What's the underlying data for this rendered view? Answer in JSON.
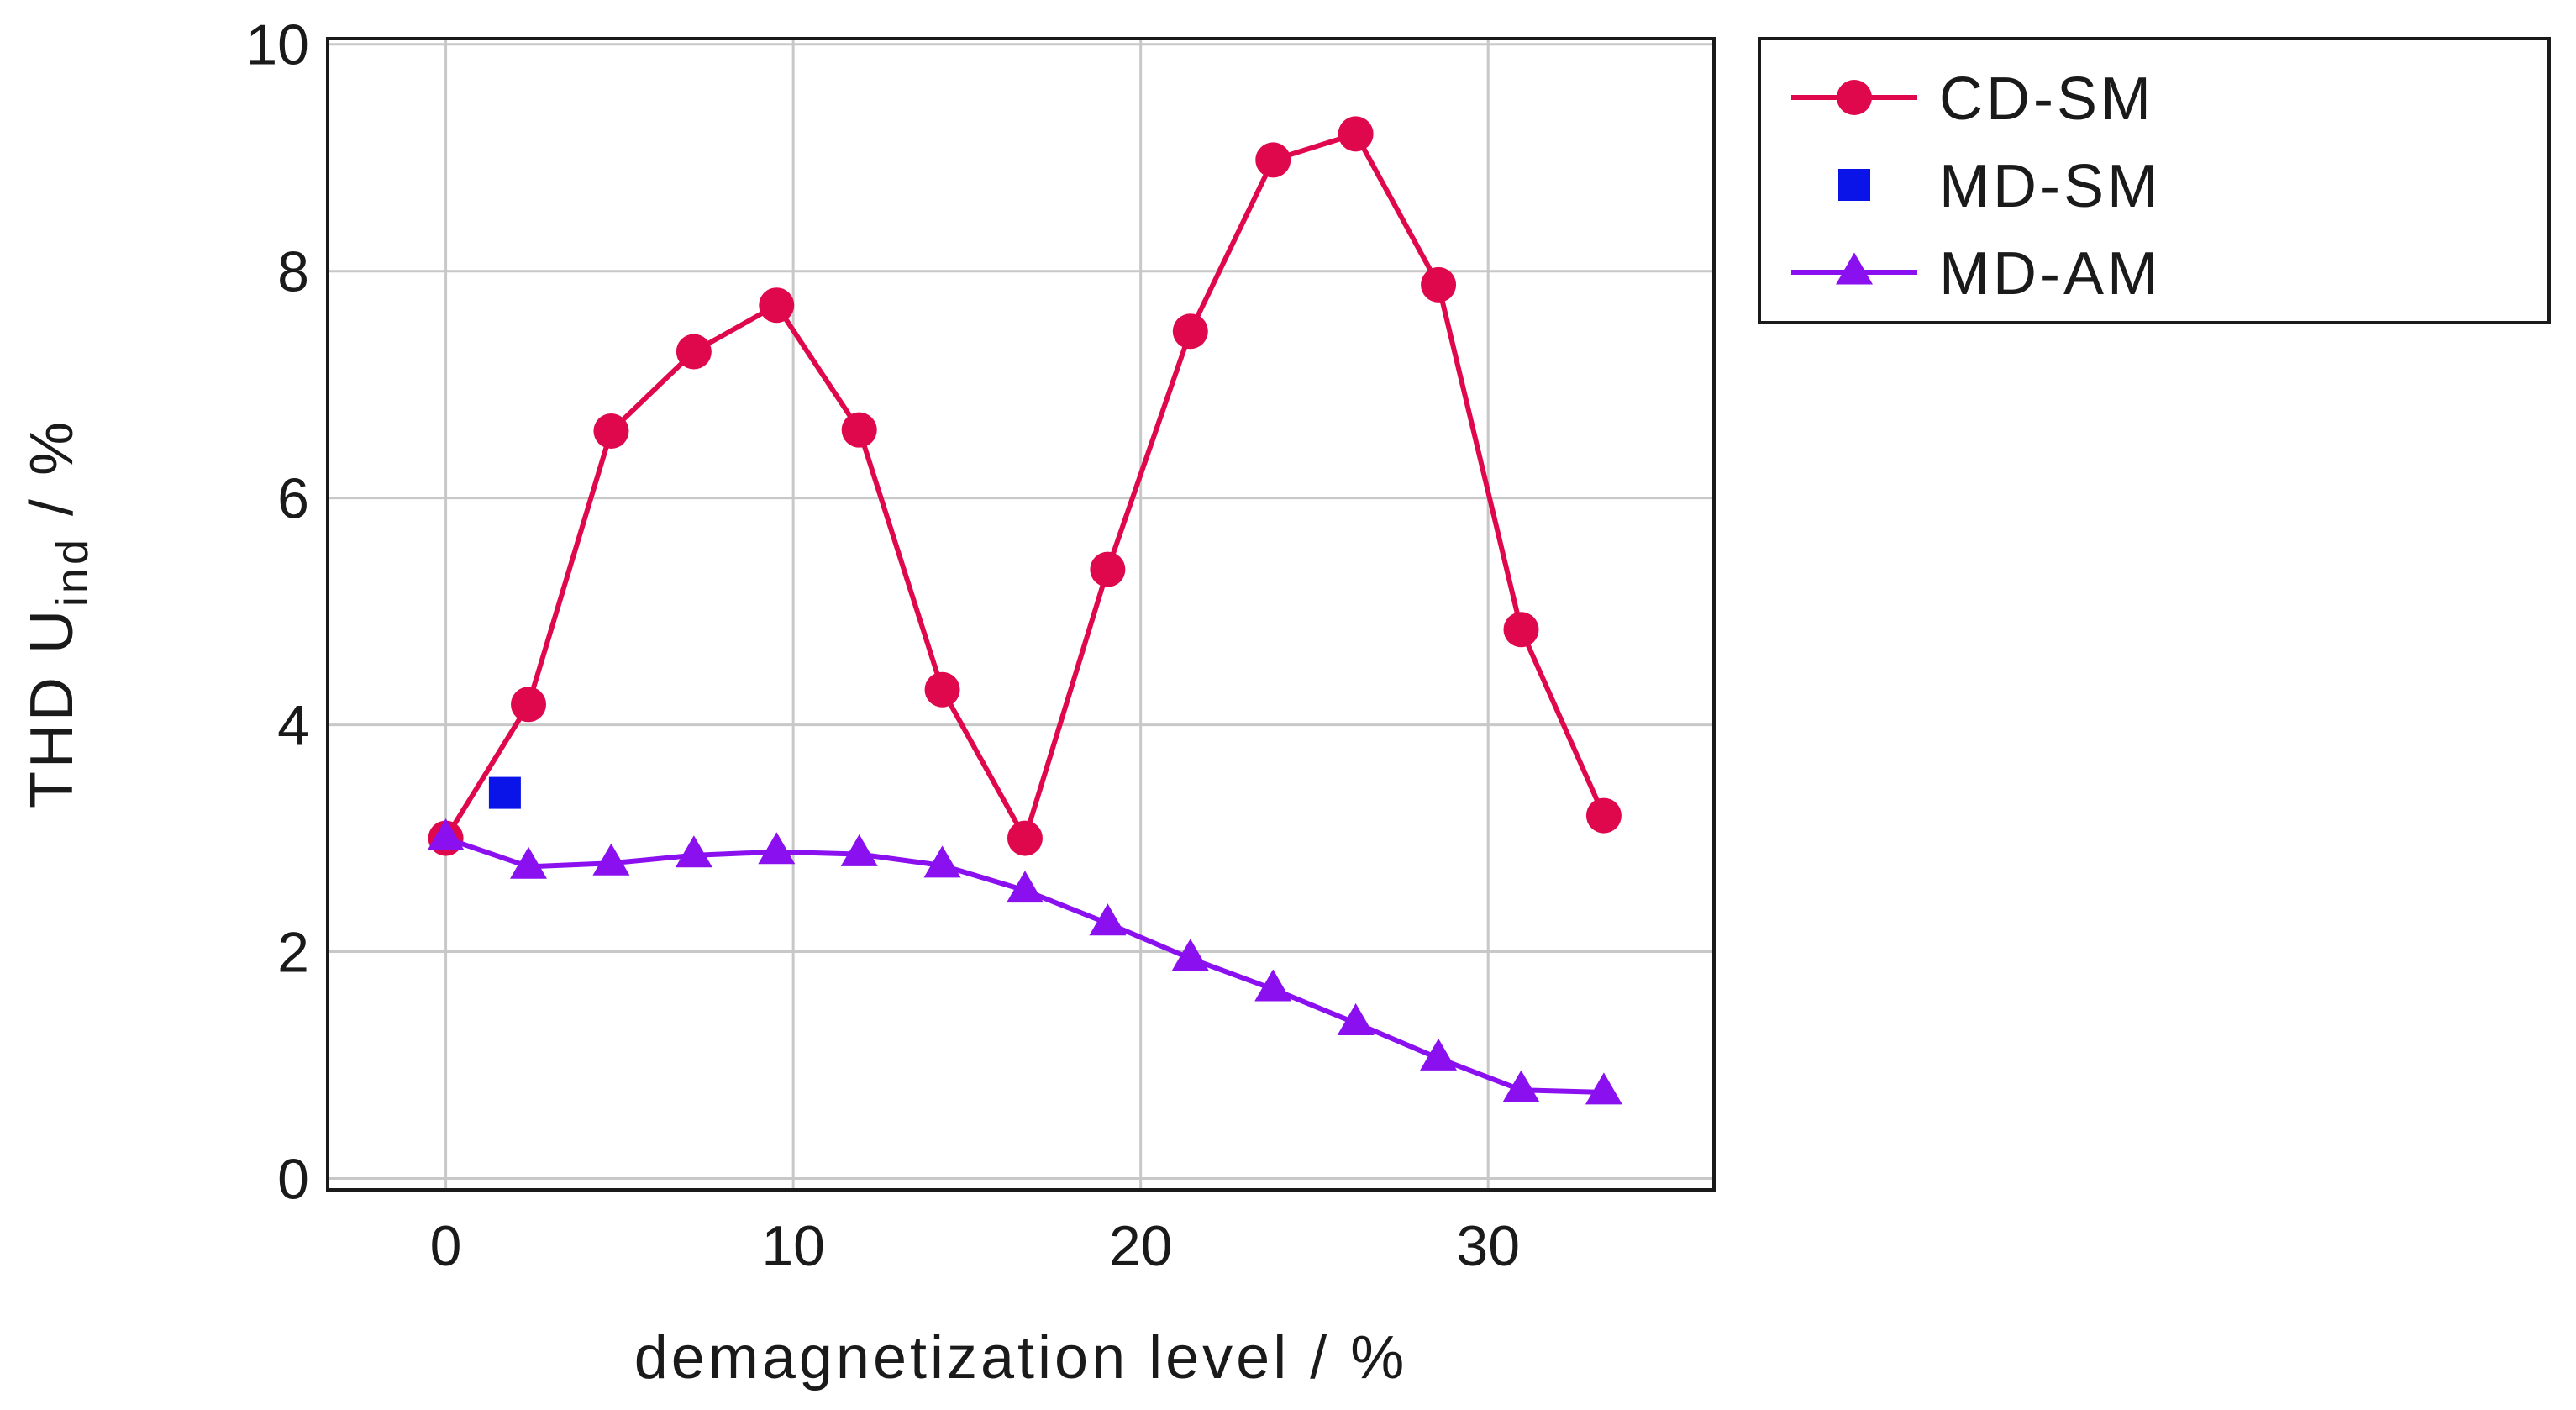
{
  "chart_data": {
    "type": "line",
    "title": "",
    "xlabel": "demagnetization level / %",
    "ylabel": {
      "base": "THD U",
      "subscript": "ind",
      "suffix": " / %"
    },
    "xlim": [
      -3.4,
      36.5
    ],
    "ylim": [
      -0.1,
      10.05
    ],
    "xticks": [
      0,
      10,
      20,
      30
    ],
    "yticks": [
      0,
      2,
      4,
      6,
      8,
      10
    ],
    "grid": true,
    "legend_position": "outside-top-right",
    "series": [
      {
        "name": "CD-SM",
        "color": "#e0084d",
        "marker": "circle",
        "line": true,
        "points": [
          [
            0,
            3.0
          ],
          [
            2.38,
            4.18
          ],
          [
            4.76,
            6.59
          ],
          [
            7.14,
            7.29
          ],
          [
            9.52,
            7.7
          ],
          [
            11.9,
            6.6
          ],
          [
            14.29,
            4.31
          ],
          [
            16.67,
            3.0
          ],
          [
            19.05,
            5.37
          ],
          [
            21.43,
            7.47
          ],
          [
            23.81,
            8.98
          ],
          [
            26.19,
            9.21
          ],
          [
            28.57,
            7.88
          ],
          [
            30.95,
            4.84
          ],
          [
            33.33,
            3.2
          ]
        ]
      },
      {
        "name": "MD-SM",
        "color": "#0a14e8",
        "marker": "square",
        "line": false,
        "points": [
          [
            1.7,
            3.4
          ]
        ]
      },
      {
        "name": "MD-AM",
        "color": "#8a10f0",
        "marker": "triangle",
        "line": true,
        "points": [
          [
            0,
            3.0
          ],
          [
            2.38,
            2.75
          ],
          [
            4.76,
            2.78
          ],
          [
            7.14,
            2.85
          ],
          [
            9.52,
            2.88
          ],
          [
            11.9,
            2.86
          ],
          [
            14.29,
            2.76
          ],
          [
            16.67,
            2.54
          ],
          [
            19.05,
            2.25
          ],
          [
            21.43,
            1.94
          ],
          [
            23.81,
            1.67
          ],
          [
            26.19,
            1.37
          ],
          [
            28.57,
            1.06
          ],
          [
            30.95,
            0.78
          ],
          [
            33.33,
            0.76
          ]
        ]
      }
    ]
  }
}
